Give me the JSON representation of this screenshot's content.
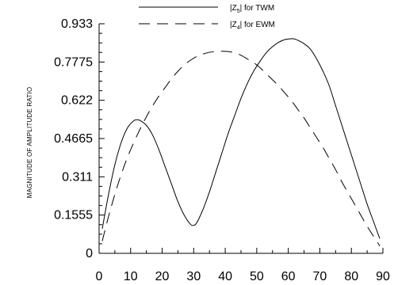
{
  "chart_data": {
    "type": "line",
    "title": "",
    "xlabel": "",
    "ylabel": "MAGNITUDE OF AMPLITUDE RATIO",
    "xlim": [
      0,
      90
    ],
    "ylim": [
      0,
      0.933
    ],
    "x_ticks": [
      0,
      10,
      20,
      30,
      40,
      50,
      60,
      70,
      80,
      90
    ],
    "x_tick_labels": [
      "0",
      "10",
      "20",
      "30",
      "40",
      "50",
      "60",
      "70",
      "80",
      "90"
    ],
    "y_ticks": [
      0,
      0.1555,
      0.311,
      0.4665,
      0.622,
      0.7775,
      0.933
    ],
    "y_tick_labels": [
      "0",
      "0.1555",
      "0.311",
      "0.4665",
      "0.622",
      "0.7775",
      "0.933"
    ],
    "grid": false,
    "legend_position": "top",
    "series": [
      {
        "name_main": "|Z",
        "name_sub": "5",
        "name_tail": "| for TWM",
        "style": "solid",
        "color": "#000000",
        "x": [
          1,
          3,
          5,
          7,
          9,
          11,
          12,
          13,
          15,
          17,
          19,
          21,
          23,
          25,
          27,
          29,
          30,
          31,
          33,
          35,
          37,
          39,
          41,
          43,
          45,
          47,
          49,
          51,
          53,
          55,
          57,
          59,
          61,
          62,
          63,
          65,
          67,
          69,
          71,
          73,
          75,
          77,
          79,
          81,
          83,
          85,
          87,
          89
        ],
        "y": [
          0.1,
          0.24,
          0.36,
          0.45,
          0.51,
          0.539,
          0.543,
          0.54,
          0.52,
          0.48,
          0.42,
          0.35,
          0.28,
          0.21,
          0.155,
          0.118,
          0.114,
          0.125,
          0.18,
          0.25,
          0.33,
          0.41,
          0.49,
          0.56,
          0.63,
          0.69,
          0.74,
          0.78,
          0.815,
          0.84,
          0.858,
          0.869,
          0.872,
          0.871,
          0.866,
          0.852,
          0.83,
          0.79,
          0.74,
          0.68,
          0.6,
          0.52,
          0.44,
          0.36,
          0.28,
          0.2,
          0.13,
          0.06
        ]
      },
      {
        "name_main": "|Z",
        "name_sub": "4",
        "name_tail": "| for EWM",
        "style": "dashed",
        "color": "#000000",
        "x": [
          1,
          3,
          5,
          7,
          9,
          11,
          13,
          15,
          17,
          19,
          21,
          23,
          25,
          27,
          29,
          31,
          33,
          35,
          37,
          39,
          41,
          43,
          45,
          47,
          49,
          51,
          53,
          55,
          57,
          59,
          61,
          63,
          65,
          67,
          69,
          71,
          73,
          75,
          77,
          79,
          81,
          83,
          85,
          87,
          89
        ],
        "y": [
          0.05,
          0.15,
          0.24,
          0.32,
          0.39,
          0.45,
          0.505,
          0.555,
          0.6,
          0.64,
          0.675,
          0.71,
          0.74,
          0.765,
          0.785,
          0.8,
          0.81,
          0.817,
          0.82,
          0.821,
          0.82,
          0.815,
          0.805,
          0.79,
          0.775,
          0.755,
          0.73,
          0.705,
          0.68,
          0.65,
          0.62,
          0.585,
          0.55,
          0.51,
          0.47,
          0.43,
          0.385,
          0.34,
          0.29,
          0.245,
          0.2,
          0.155,
          0.11,
          0.07,
          0.03
        ]
      }
    ]
  }
}
